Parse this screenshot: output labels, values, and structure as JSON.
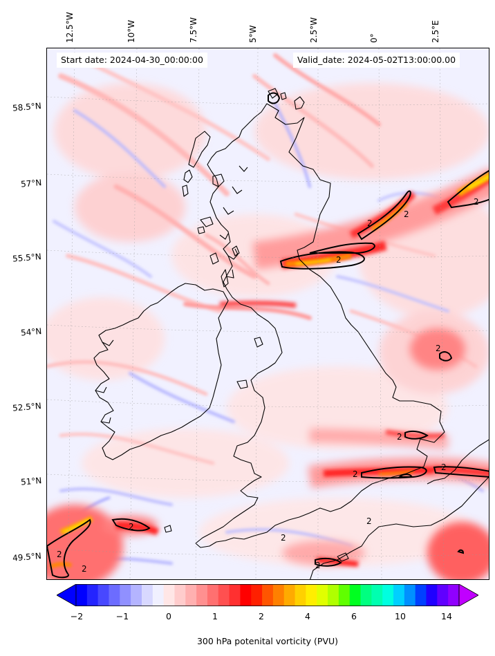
{
  "map": {
    "lon_labels": [
      "12.5°W",
      "10°W",
      "7.5°W",
      "5°W",
      "2.5°W",
      "0°",
      "2.5°E"
    ],
    "lat_labels": [
      "58.5°N",
      "57°N",
      "55.5°N",
      "54°N",
      "52.5°N",
      "51°N",
      "49.5°N"
    ],
    "start_date": "Start date: 2024-04-30_00:00:00",
    "valid_date": "Valid_date: 2024-05-02T13:00:00.00",
    "contour_label": "2"
  },
  "colorbar": {
    "ticks": [
      "−2",
      "−1",
      "0",
      "1",
      "2",
      "4",
      "6",
      "10",
      "14"
    ],
    "label": "300 hPa potenital vorticity (PVU)",
    "colors": [
      "#0000ff",
      "#2424ff",
      "#4848ff",
      "#6c6cff",
      "#9090ff",
      "#b4b4ff",
      "#d8d8ff",
      "#f0f0ff",
      "#ffe6e6",
      "#ffcccc",
      "#ffb0b0",
      "#ff9090",
      "#ff7070",
      "#ff5050",
      "#ff3030",
      "#ff0000",
      "#ff2000",
      "#ff5500",
      "#ff8000",
      "#ffaa00",
      "#ffd000",
      "#ffee00",
      "#e0ff00",
      "#b0ff00",
      "#60ff00",
      "#00ff20",
      "#00ff80",
      "#00ffb0",
      "#00ffe0",
      "#00d0ff",
      "#0090ff",
      "#0040ff",
      "#2000ff",
      "#6000ff",
      "#9000ff"
    ],
    "extend_low_color": "#0000ff",
    "extend_high_color": "#c000ff"
  }
}
